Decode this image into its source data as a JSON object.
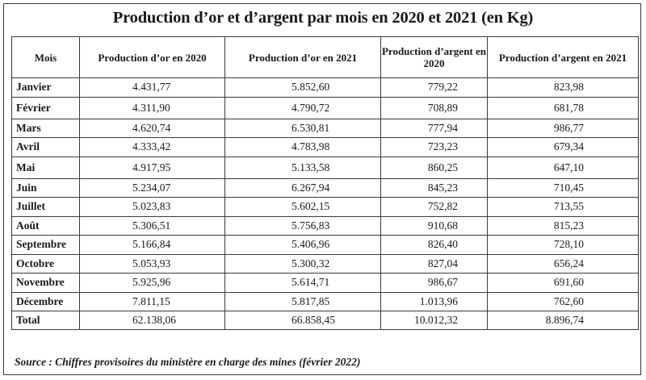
{
  "title": "Production d’or et d’argent par mois en 2020 et 2021 (en Kg)",
  "table": {
    "headers": [
      "Mois",
      "Production d’or en 2020",
      "Production d’or en 2021",
      "Production d’argent en 2020",
      "Production d’argent en 2021"
    ],
    "rows": [
      [
        "Janvier",
        "4.431,77",
        "5.852,60",
        "779,22",
        "823,98"
      ],
      [
        "Février",
        "4.311,90",
        "4.790,72",
        "708,89",
        "681,78"
      ],
      [
        "Mars",
        "4.620,74",
        "6.530,81",
        "777,94",
        "986,77"
      ],
      [
        "Avril",
        "4.333,42",
        "4.783,98",
        "723,23",
        "679,34"
      ],
      [
        "Mai",
        "4.917,95",
        "5.133,58",
        "860,25",
        "647,10"
      ],
      [
        "Juin",
        "5.234,07",
        "6.267,94",
        "845,23",
        "710,45"
      ],
      [
        "Juillet",
        "5.023,83",
        "5.602,15",
        "752,82",
        "713,55"
      ],
      [
        "Août",
        "5.306,51",
        "5.756,83",
        "910,68",
        "815,23"
      ],
      [
        "Septembre",
        "5.166,84",
        "5.406,96",
        "826,40",
        "728,10"
      ],
      [
        "Octobre",
        "5.053,93",
        "5.300,32",
        "827,04",
        "656,24"
      ],
      [
        "Novembre",
        "5.925,96",
        "5.614,71",
        "986,67",
        "691,60"
      ],
      [
        "Décembre",
        "7.811,15",
        "5.817,85",
        "1.013,96",
        "762,60"
      ]
    ],
    "total": [
      "Total",
      "62.138,06",
      "66.858,45",
      "10.012,32",
      "8.896,74"
    ]
  },
  "source": "Source : Chiffres provisoires du ministère en charge des mines (février 2022)"
}
